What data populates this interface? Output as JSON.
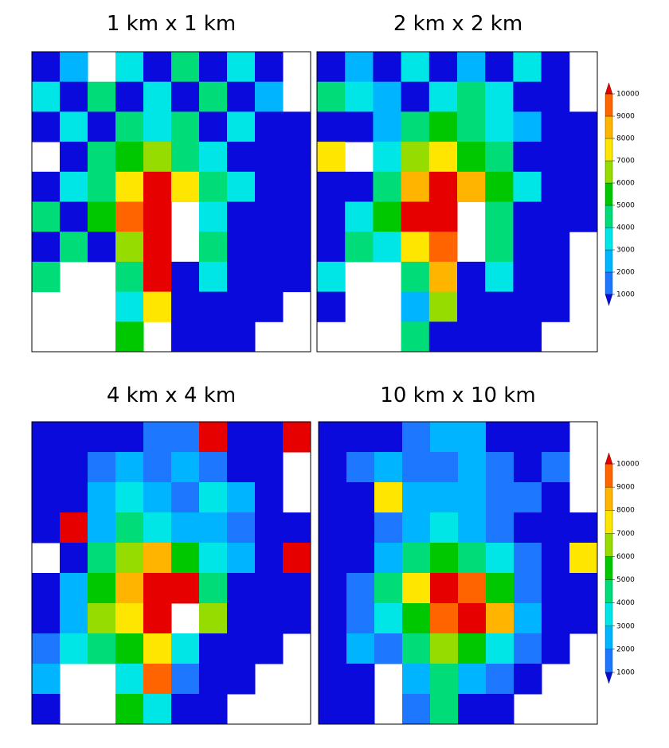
{
  "panels": [
    {
      "title": "1 km x 1 km",
      "grid": [
        [
          500,
          2500,
          null,
          3500,
          500,
          4500,
          500,
          3500,
          500,
          null
        ],
        [
          3500,
          500,
          4500,
          500,
          3500,
          500,
          4500,
          500,
          2500,
          null
        ],
        [
          500,
          3500,
          500,
          4500,
          3500,
          4500,
          500,
          3500,
          500,
          500
        ],
        [
          null,
          500,
          4500,
          5500,
          6500,
          4500,
          3500,
          500,
          500,
          500
        ],
        [
          500,
          3500,
          4500,
          7500,
          10000,
          7500,
          4500,
          3500,
          500,
          500
        ],
        [
          4500,
          500,
          5500,
          9500,
          10000,
          null,
          3500,
          500,
          500,
          500
        ],
        [
          500,
          4500,
          500,
          6500,
          10000,
          null,
          4500,
          500,
          500,
          500
        ],
        [
          4500,
          null,
          null,
          4500,
          10000,
          500,
          3500,
          500,
          500,
          500
        ],
        [
          null,
          null,
          null,
          3500,
          7500,
          500,
          500,
          500,
          500,
          null
        ],
        [
          null,
          null,
          null,
          5500,
          null,
          500,
          500,
          500,
          null,
          null
        ]
      ]
    },
    {
      "title": "2 km x 2 km",
      "grid": [
        [
          500,
          2500,
          500,
          3500,
          500,
          2500,
          500,
          3500,
          500,
          null
        ],
        [
          4500,
          3500,
          2500,
          500,
          3500,
          4500,
          3500,
          500,
          500,
          null
        ],
        [
          500,
          500,
          2500,
          4500,
          5500,
          4500,
          3500,
          2500,
          500,
          500
        ],
        [
          7500,
          null,
          3500,
          6500,
          7500,
          5500,
          4500,
          500,
          500,
          500
        ],
        [
          500,
          500,
          4500,
          8500,
          10000,
          8500,
          5500,
          3500,
          500,
          500
        ],
        [
          500,
          3500,
          5500,
          10000,
          10000,
          null,
          4500,
          500,
          500,
          500
        ],
        [
          500,
          4500,
          3500,
          7500,
          9500,
          null,
          4500,
          500,
          500,
          null
        ],
        [
          3500,
          null,
          null,
          4500,
          8500,
          500,
          3500,
          500,
          500,
          null
        ],
        [
          500,
          null,
          null,
          2500,
          6500,
          500,
          500,
          500,
          500,
          null
        ],
        [
          null,
          null,
          null,
          4500,
          500,
          500,
          500,
          500,
          null,
          null
        ]
      ]
    },
    {
      "title": "4 km x 4 km",
      "grid": [
        [
          500,
          500,
          500,
          500,
          1500,
          1500,
          10000,
          500,
          500,
          10000
        ],
        [
          500,
          500,
          1500,
          2500,
          1500,
          2500,
          1500,
          500,
          500,
          null
        ],
        [
          500,
          500,
          2500,
          3500,
          2500,
          1500,
          3500,
          2500,
          500,
          null
        ],
        [
          500,
          10000,
          2500,
          4500,
          3500,
          2500,
          2500,
          1500,
          500,
          500
        ],
        [
          null,
          500,
          4500,
          6500,
          8500,
          5500,
          3500,
          2500,
          500,
          10000
        ],
        [
          500,
          2500,
          5500,
          8500,
          10000,
          10000,
          4500,
          500,
          500,
          500
        ],
        [
          500,
          2500,
          6500,
          7500,
          10000,
          null,
          6500,
          500,
          500,
          500
        ],
        [
          1500,
          3500,
          4500,
          5500,
          7500,
          3500,
          500,
          500,
          500,
          null
        ],
        [
          2500,
          null,
          null,
          3500,
          9500,
          1500,
          500,
          500,
          null,
          null
        ],
        [
          500,
          null,
          null,
          5500,
          3500,
          500,
          500,
          null,
          null,
          null
        ]
      ]
    },
    {
      "title": "10 km x 10 km",
      "grid": [
        [
          500,
          500,
          500,
          1500,
          2500,
          2500,
          500,
          500,
          500,
          null
        ],
        [
          500,
          1500,
          2500,
          1500,
          1500,
          2500,
          1500,
          500,
          1500,
          null
        ],
        [
          500,
          500,
          7500,
          2500,
          2500,
          2500,
          1500,
          1500,
          500,
          null
        ],
        [
          500,
          500,
          1500,
          2500,
          3500,
          2500,
          1500,
          500,
          500,
          500
        ],
        [
          500,
          500,
          2500,
          4500,
          5500,
          4500,
          3500,
          1500,
          500,
          7500
        ],
        [
          500,
          1500,
          4500,
          7500,
          10000,
          9500,
          5500,
          1500,
          500,
          500
        ],
        [
          500,
          1500,
          3500,
          5500,
          9500,
          10000,
          8500,
          2500,
          500,
          500
        ],
        [
          500,
          2500,
          1500,
          4500,
          6500,
          5500,
          3500,
          1500,
          500,
          null
        ],
        [
          500,
          500,
          null,
          2500,
          4500,
          2500,
          1500,
          500,
          null,
          null
        ],
        [
          500,
          500,
          null,
          1500,
          4500,
          500,
          500,
          null,
          null,
          null
        ]
      ]
    }
  ],
  "color_scale": {
    "colors": [
      "#0a0adc",
      "#1e78ff",
      "#00b4ff",
      "#00e6e6",
      "#00dc78",
      "#00c800",
      "#96dc00",
      "#ffe600",
      "#ffb400",
      "#ff6400",
      "#e60000"
    ]
  },
  "colorbars": [
    {
      "ticks": [
        1000,
        2000,
        3000,
        4000,
        5000,
        6000,
        7000,
        8000,
        9000,
        10000
      ]
    },
    {
      "ticks": [
        1000,
        2000,
        3000,
        4000,
        5000,
        6000,
        7000,
        8000,
        9000,
        10000
      ]
    }
  ]
}
